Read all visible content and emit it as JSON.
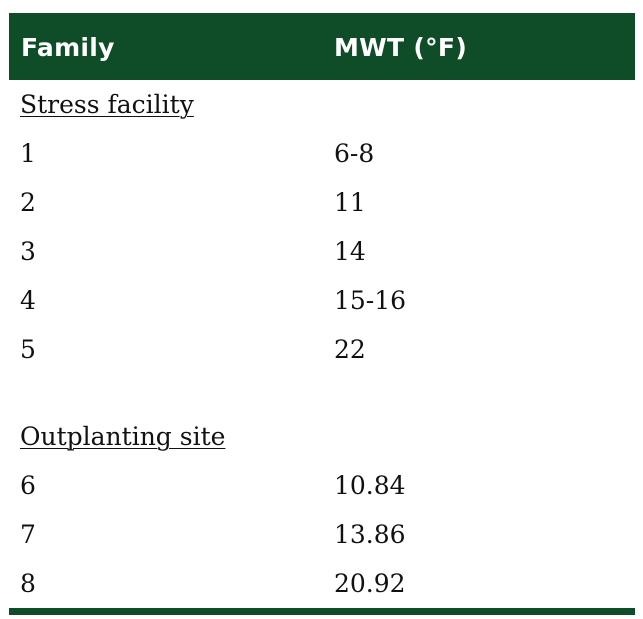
{
  "table": {
    "headers": [
      "Family",
      "MWT (°F)"
    ],
    "sections": [
      {
        "label": "Stress facility",
        "rows": [
          {
            "family": "1",
            "mwt": "6-8"
          },
          {
            "family": "2",
            "mwt": "11"
          },
          {
            "family": "3",
            "mwt": "14"
          },
          {
            "family": "4",
            "mwt": "15-16"
          },
          {
            "family": "5",
            "mwt": "22"
          }
        ]
      },
      {
        "label": "Outplanting site",
        "rows": [
          {
            "family": "6",
            "mwt": "10.84"
          },
          {
            "family": "7",
            "mwt": "13.86"
          },
          {
            "family": "8",
            "mwt": "20.92"
          }
        ]
      }
    ]
  },
  "colors": {
    "header_bg": "#0e4d27",
    "header_text": "#ffffff",
    "body_text": "#111111"
  }
}
